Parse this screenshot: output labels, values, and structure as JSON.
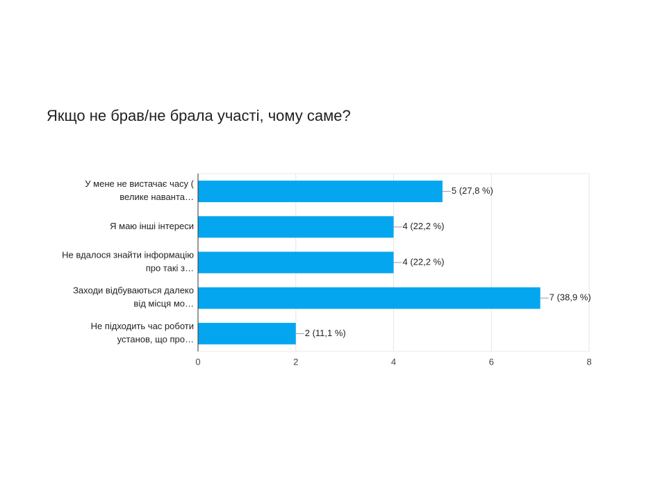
{
  "chart_data": {
    "type": "bar",
    "orientation": "horizontal",
    "title": "Якщо не брав/не брала участі, чому саме?",
    "categories": [
      "У мене не вистачає часу (\nвелике наванта…",
      "Я маю інші інтереси",
      "Не вдалося знайти інформацію\nпро такі з…",
      "Заходи відбуваються далеко\nвід місця мо…",
      "Не підходить час роботи\nустанов, що про…"
    ],
    "values": [
      5,
      4,
      4,
      7,
      2
    ],
    "value_labels": [
      "5 (27,8 %)",
      "4 (22,2 %)",
      "4 (22,2 %)",
      "7 (38,9 %)",
      "2 (11,1 %)"
    ],
    "color": "#05a6f0",
    "xlim": [
      0,
      8
    ],
    "xticks": [
      0,
      2,
      4,
      6,
      8
    ],
    "grid": true
  }
}
